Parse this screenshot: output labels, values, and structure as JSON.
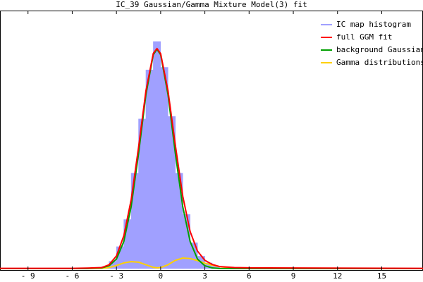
{
  "chart_data": {
    "type": "line",
    "title": "IC_39 Gaussian/Gamma Mixture Model(3) fit",
    "x": [
      -10.9,
      -6,
      -5,
      -4,
      -3.5,
      -3,
      -2.5,
      -2,
      -1.5,
      -1,
      -0.5,
      -0.25,
      0,
      0.5,
      1,
      1.5,
      2,
      2.5,
      3,
      3.5,
      4,
      5,
      6,
      17.8
    ],
    "histogram": {
      "name": "IC map histogram",
      "color": "#a0a0ff",
      "bins": [
        -4,
        -3.5,
        -3,
        -2.5,
        -2,
        -1.5,
        -1,
        -0.5,
        0,
        0.5,
        1,
        1.5,
        2,
        2.5,
        3,
        3.5,
        4
      ],
      "counts": [
        0.008,
        0.028,
        0.085,
        0.19,
        0.37,
        0.58,
        0.77,
        0.88,
        0.78,
        0.59,
        0.37,
        0.21,
        0.1,
        0.048,
        0.022,
        0.01
      ]
    },
    "series": [
      {
        "name": "full GGM fit",
        "color": "#ff0000",
        "values": [
          0.001,
          0.001,
          0.002,
          0.004,
          0.015,
          0.049,
          0.127,
          0.267,
          0.47,
          0.689,
          0.834,
          0.853,
          0.833,
          0.689,
          0.477,
          0.281,
          0.144,
          0.068,
          0.032,
          0.016,
          0.008,
          0.004,
          0.003,
          0.001
        ]
      },
      {
        "name": "background Gaussian",
        "color": "#00a000",
        "values": [
          0,
          0,
          0.0001,
          0.0026,
          0.011,
          0.037,
          0.105,
          0.24,
          0.445,
          0.674,
          0.829,
          0.85,
          0.829,
          0.674,
          0.445,
          0.24,
          0.105,
          0.037,
          0.011,
          0.0026,
          0.0005,
          0,
          0,
          0
        ]
      },
      {
        "name": "Gamma distributions",
        "color": "#ffd000",
        "values": [
          0,
          0,
          0,
          0.001,
          0.004,
          0.012,
          0.022,
          0.027,
          0.025,
          0.015,
          0.005,
          0.003,
          0.004,
          0.015,
          0.032,
          0.041,
          0.039,
          0.031,
          0.021,
          0.013,
          0.007,
          0.002,
          0.0005,
          0
        ]
      }
    ],
    "xlim": [
      -10.9,
      17.8
    ],
    "ylim": [
      0,
      1
    ],
    "xticks": [
      {
        "value": -9,
        "label": "- 9"
      },
      {
        "value": -6,
        "label": "- 6"
      },
      {
        "value": -3,
        "label": "- 3"
      },
      0,
      3,
      6,
      9,
      12,
      15
    ],
    "grid": false,
    "legend": "top-right"
  }
}
